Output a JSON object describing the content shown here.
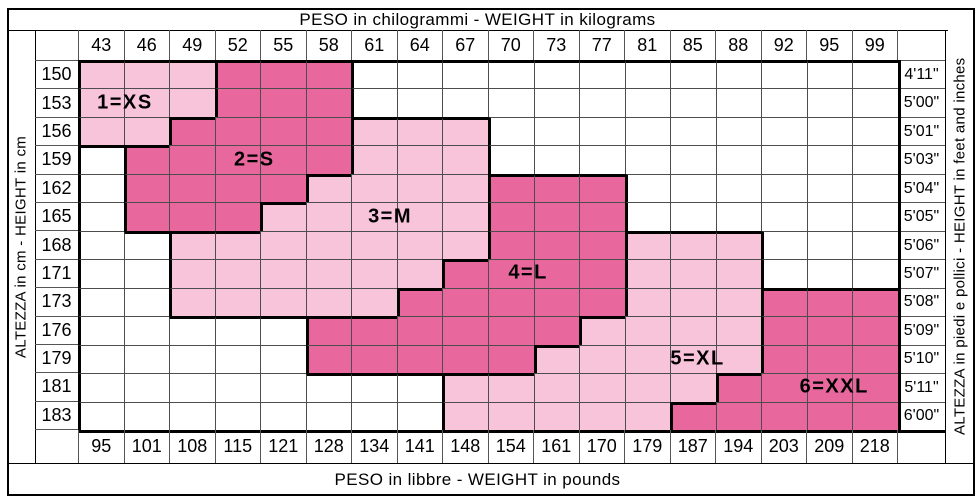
{
  "header_top": "PESO in chilogrammi -  WEIGHT in kilograms",
  "header_bottom": "PESO in libbre -  WEIGHT in pounds",
  "axis_left": "ALTEZZA in cm  -  HEIGHT in cm",
  "axis_right": "ALTEZZA in piedi e pollici - HEIGHT in feet and inches",
  "colors": {
    "size_light": "#f8c4d9",
    "size_dark": "#e8689e",
    "line_thick": "#000000",
    "line_thin": "#4d4d4d",
    "background": "#ffffff"
  },
  "sizes": [
    {
      "label": "1=XS",
      "row": 1,
      "col": 1.03
    },
    {
      "label": "2=S",
      "row": 3,
      "col": 3.87
    },
    {
      "label": "3=M",
      "row": 5,
      "col": 6.85
    },
    {
      "label": "4=L",
      "row": 7,
      "col": 9.88
    },
    {
      "label": "5=XL",
      "row": 10,
      "col": 13.6
    },
    {
      "label": "6=XXL",
      "row": 11,
      "col": 16.6
    }
  ],
  "chart_data": {
    "type": "heatmap",
    "title": "Clothing size chart: height vs weight",
    "x_label_top": "PESO in chilogrammi -  WEIGHT in kilograms",
    "x_label_bottom": "PESO in libbre -  WEIGHT in pounds",
    "y_label_left": "ALTEZZA in cm  -  HEIGHT in cm",
    "y_label_right": "ALTEZZA in piedi e pollici - HEIGHT in feet and inches",
    "weights_kg": [
      "43",
      "46",
      "49",
      "52",
      "55",
      "58",
      "61",
      "64",
      "67",
      "70",
      "73",
      "77",
      "81",
      "85",
      "88",
      "92",
      "95",
      "99"
    ],
    "weights_lb": [
      "95",
      "101",
      "108",
      "115",
      "121",
      "128",
      "134",
      "141",
      "148",
      "154",
      "161",
      "170",
      "179",
      "187",
      "194",
      "203",
      "209",
      "218"
    ],
    "heights_cm": [
      "150",
      "153",
      "156",
      "159",
      "162",
      "165",
      "168",
      "171",
      "173",
      "176",
      "179",
      "181",
      "183"
    ],
    "heights_ft": [
      "4'11\"",
      "5'00\"",
      "5'01\"",
      "5'03\"",
      "5'04\"",
      "5'05\"",
      "5'06\"",
      "5'07\"",
      "5'08\"",
      "5'09\"",
      "5'10\"",
      "5'11\"",
      "6'00\""
    ],
    "legend": [
      "1=XS",
      "2=S",
      "3=M",
      "4=L",
      "5=XL",
      "6=XXL"
    ],
    "cell_values_note": "0 = no size (white); 1..6 = size region id; odd ids light pink, even ids dark pink",
    "cells": [
      [
        1,
        1,
        1,
        2,
        2,
        2,
        0,
        0,
        0,
        0,
        0,
        0,
        0,
        0,
        0,
        0,
        0,
        0
      ],
      [
        1,
        1,
        1,
        2,
        2,
        2,
        0,
        0,
        0,
        0,
        0,
        0,
        0,
        0,
        0,
        0,
        0,
        0
      ],
      [
        1,
        1,
        2,
        2,
        2,
        2,
        3,
        3,
        3,
        0,
        0,
        0,
        0,
        0,
        0,
        0,
        0,
        0
      ],
      [
        0,
        2,
        2,
        2,
        2,
        2,
        3,
        3,
        3,
        0,
        0,
        0,
        0,
        0,
        0,
        0,
        0,
        0
      ],
      [
        0,
        2,
        2,
        2,
        2,
        3,
        3,
        3,
        3,
        4,
        4,
        4,
        0,
        0,
        0,
        0,
        0,
        0
      ],
      [
        0,
        2,
        2,
        2,
        3,
        3,
        3,
        3,
        3,
        4,
        4,
        4,
        0,
        0,
        0,
        0,
        0,
        0
      ],
      [
        0,
        0,
        3,
        3,
        3,
        3,
        3,
        3,
        3,
        4,
        4,
        4,
        5,
        5,
        5,
        0,
        0,
        0
      ],
      [
        0,
        0,
        3,
        3,
        3,
        3,
        3,
        3,
        4,
        4,
        4,
        4,
        5,
        5,
        5,
        0,
        0,
        0
      ],
      [
        0,
        0,
        3,
        3,
        3,
        3,
        3,
        4,
        4,
        4,
        4,
        4,
        5,
        5,
        5,
        6,
        6,
        6
      ],
      [
        0,
        0,
        0,
        0,
        0,
        4,
        4,
        4,
        4,
        4,
        4,
        5,
        5,
        5,
        5,
        6,
        6,
        6
      ],
      [
        0,
        0,
        0,
        0,
        0,
        4,
        4,
        4,
        4,
        4,
        5,
        5,
        5,
        5,
        5,
        6,
        6,
        6
      ],
      [
        0,
        0,
        0,
        0,
        0,
        0,
        0,
        0,
        5,
        5,
        5,
        5,
        5,
        5,
        6,
        6,
        6,
        6
      ],
      [
        0,
        0,
        0,
        0,
        0,
        0,
        0,
        0,
        5,
        5,
        5,
        5,
        5,
        6,
        6,
        6,
        6,
        6
      ]
    ]
  }
}
